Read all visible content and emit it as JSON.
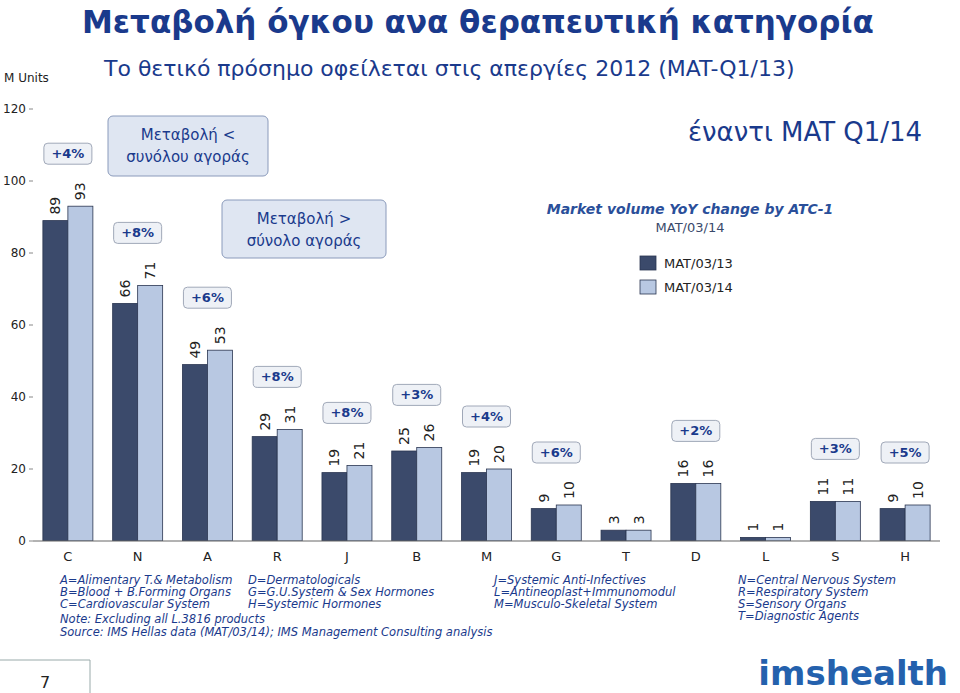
{
  "chart_data": {
    "type": "bar",
    "title": "Μεταβολή όγκου ανα θεραπευτική κατηγορία",
    "subtitle": "Το θετικό πρόσημο οφείλεται στις απεργίες 2012 (MAT-Q1/13)",
    "annotation": "έναντι MAT Q1/14",
    "callouts": [
      [
        "Μεταβολή <",
        "συνόλου αγοράς"
      ],
      [
        "Μεταβολή >",
        "σύνολο αγοράς"
      ]
    ],
    "legend_title": "Market volume YoY change by ATC-1",
    "legend_subtitle": "MAT/03/14",
    "y_label": "M Units",
    "categories": [
      "C",
      "N",
      "A",
      "R",
      "J",
      "B",
      "M",
      "G",
      "T",
      "D",
      "L",
      "S",
      "H"
    ],
    "series": [
      {
        "name": "MAT/03/13",
        "color": "#3b4a6b",
        "values": [
          89,
          66,
          49,
          29,
          19,
          25,
          19,
          9,
          3,
          16,
          1,
          11,
          9
        ]
      },
      {
        "name": "MAT/03/14",
        "color": "#b8c8e2",
        "values": [
          93,
          71,
          53,
          31,
          21,
          26,
          20,
          10,
          3,
          16,
          1,
          11,
          10
        ]
      }
    ],
    "change_labels": [
      "+4%",
      "+8%",
      "+6%",
      "+8%",
      "+8%",
      "+3%",
      "+4%",
      "+6%",
      null,
      "+2%",
      null,
      "+3%",
      "+5%"
    ],
    "ylim": [
      0,
      120
    ],
    "yticks": [
      0,
      20,
      40,
      60,
      80,
      100,
      120
    ],
    "grid": false,
    "data_labels": true,
    "legend": "top-right",
    "abbreviations": [
      [
        "A=Alimentary T.& Metabolism",
        "B=Blood + B.Forming Organs",
        "C=Cardiovascular System"
      ],
      [
        "D=Dermatologicals",
        "G=G.U.System & Sex Hormones",
        "H=Systemic Hormones"
      ],
      [
        "J=Systemic Anti-Infectives",
        "L=Antineoplast+Immunomodul",
        "M=Musculo-Skeletal System"
      ],
      [
        "N=Central Nervous System",
        "R=Respiratory System",
        "S=Sensory Organs",
        "T=Diagnostic Agents"
      ]
    ],
    "note": "Note: Excluding all L.3816 products",
    "source": "Source: IMS Hellas data (MAT/03/14); IMS Management Consulting analysis",
    "page_number": "7",
    "logo": "imshealth"
  }
}
